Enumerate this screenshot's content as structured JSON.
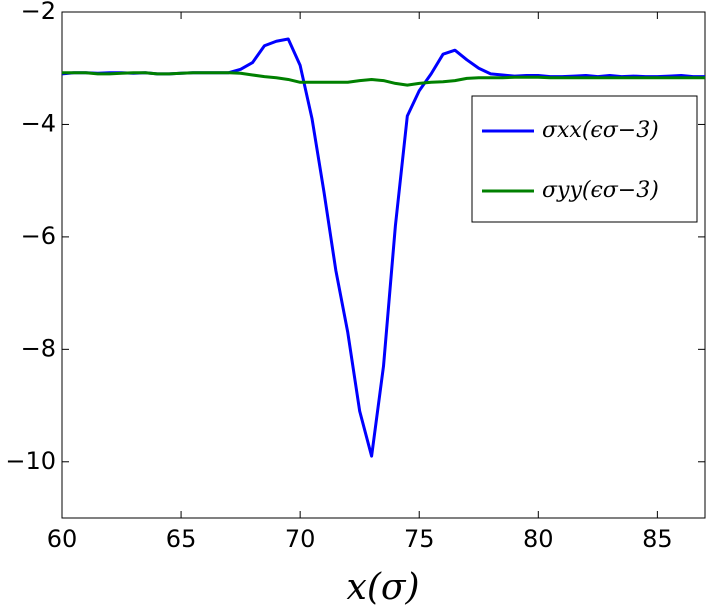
{
  "chart_data": {
    "type": "line",
    "x": [
      60,
      60.5,
      61,
      61.5,
      62,
      62.5,
      63,
      63.5,
      64,
      64.5,
      65,
      65.5,
      66,
      66.5,
      67,
      67.5,
      68,
      68.5,
      69,
      69.5,
      70,
      70.5,
      71,
      71.5,
      72,
      72.5,
      73,
      73.5,
      74,
      74.5,
      75,
      75.5,
      76,
      76.5,
      77,
      77.5,
      78,
      78.5,
      79,
      79.5,
      80,
      80.5,
      81,
      81.5,
      82,
      82.5,
      83,
      83.5,
      84,
      84.5,
      85,
      85.5,
      86,
      86.5,
      87
    ],
    "series": [
      {
        "name": "σxx(ϵσ−3)",
        "color": "#0000ff",
        "values": [
          -3.1,
          -3.08,
          -3.08,
          -3.09,
          -3.08,
          -3.08,
          -3.09,
          -3.08,
          -3.1,
          -3.1,
          -3.09,
          -3.08,
          -3.08,
          -3.08,
          -3.08,
          -3.02,
          -2.9,
          -2.6,
          -2.52,
          -2.48,
          -2.95,
          -3.9,
          -5.2,
          -6.6,
          -7.7,
          -9.1,
          -9.9,
          -8.3,
          -5.8,
          -3.85,
          -3.4,
          -3.1,
          -2.75,
          -2.68,
          -2.85,
          -3.0,
          -3.1,
          -3.12,
          -3.14,
          -3.13,
          -3.13,
          -3.15,
          -3.15,
          -3.14,
          -3.13,
          -3.15,
          -3.13,
          -3.15,
          -3.14,
          -3.15,
          -3.15,
          -3.14,
          -3.13,
          -3.15,
          -3.15
        ]
      },
      {
        "name": "σyy(ϵσ−3)",
        "color": "#008000",
        "values": [
          -3.08,
          -3.08,
          -3.08,
          -3.1,
          -3.1,
          -3.09,
          -3.08,
          -3.08,
          -3.1,
          -3.1,
          -3.09,
          -3.08,
          -3.08,
          -3.08,
          -3.08,
          -3.09,
          -3.12,
          -3.15,
          -3.17,
          -3.2,
          -3.25,
          -3.25,
          -3.25,
          -3.25,
          -3.25,
          -3.22,
          -3.2,
          -3.22,
          -3.27,
          -3.3,
          -3.27,
          -3.25,
          -3.24,
          -3.22,
          -3.18,
          -3.17,
          -3.17,
          -3.17,
          -3.16,
          -3.16,
          -3.16,
          -3.17,
          -3.17,
          -3.17,
          -3.17,
          -3.17,
          -3.17,
          -3.17,
          -3.17,
          -3.17,
          -3.17,
          -3.17,
          -3.17,
          -3.17,
          -3.17
        ]
      }
    ],
    "xlabel": "x(σ)",
    "xlim": [
      60,
      87
    ],
    "ylim": [
      -11,
      -2
    ],
    "xticks": [
      60,
      65,
      70,
      75,
      80,
      85
    ],
    "yticks": [
      {
        "value": -2,
        "label": "−2"
      },
      {
        "value": -4,
        "label": "−4"
      },
      {
        "value": -6,
        "label": "−6"
      },
      {
        "value": -8,
        "label": "−8"
      },
      {
        "value": -10,
        "label": "−10"
      }
    ],
    "grid": false,
    "legend": "upper right"
  }
}
